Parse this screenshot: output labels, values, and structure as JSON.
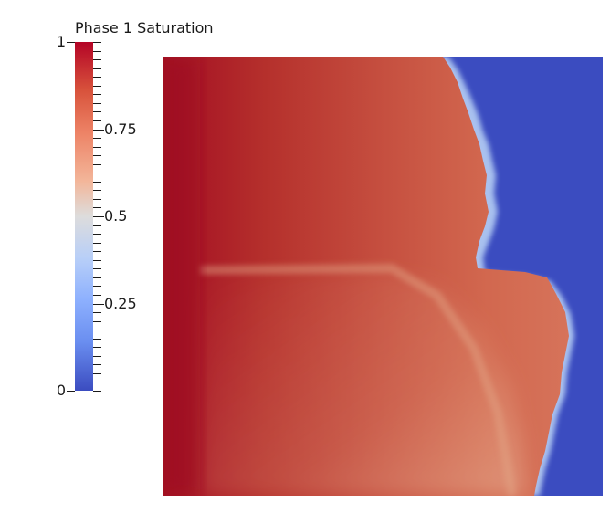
{
  "colorbar": {
    "title": "Phase 1 Saturation",
    "labels": [
      {
        "value": 1,
        "text": "1",
        "side": "left"
      },
      {
        "value": 0.75,
        "text": "0.75",
        "side": "right"
      },
      {
        "value": 0.5,
        "text": "0.5",
        "side": "right"
      },
      {
        "value": 0.25,
        "text": "0.25",
        "side": "right"
      },
      {
        "value": 0,
        "text": "0",
        "side": "left"
      }
    ],
    "range": [
      0,
      1
    ],
    "colors": {
      "min": "#3b4cc0",
      "mid": "#dddcdc",
      "max": "#b40426"
    }
  }
}
